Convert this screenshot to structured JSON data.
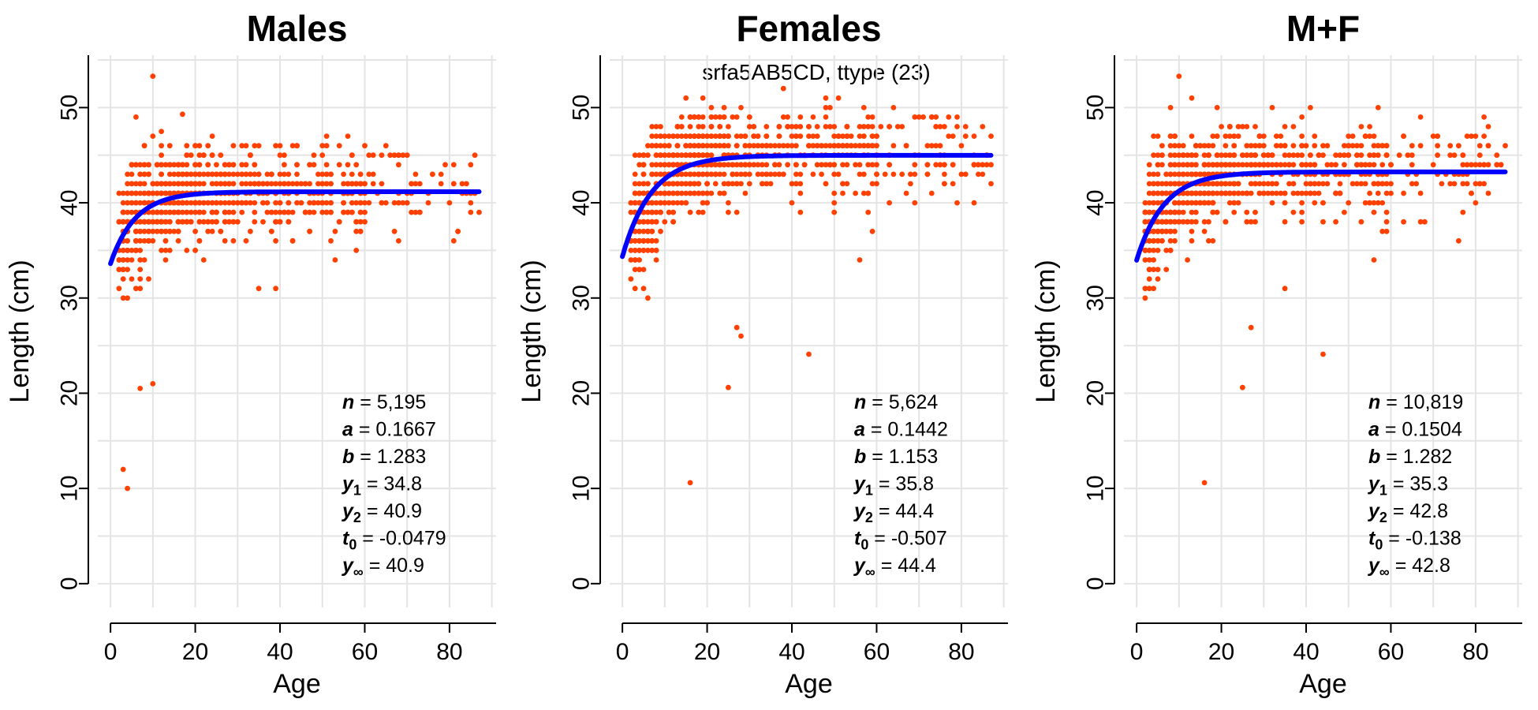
{
  "subtitle": "srfa5AB5CD, ttype (23)",
  "chart_data": [
    {
      "type": "scatter",
      "title": "Males",
      "xlabel": "Age",
      "ylabel": "Length (cm)",
      "xlim": [
        -3,
        91
      ],
      "ylim": [
        -2.5,
        55.5
      ],
      "xticks": [
        0,
        20,
        40,
        60,
        80
      ],
      "yticks": [
        0,
        10,
        20,
        30,
        40,
        50
      ],
      "grid": true,
      "point_color": "#FF4000",
      "curve_color": "#0000FF",
      "max_age": 87,
      "n_points": 5195,
      "fit": {
        "a": 0.1667,
        "b": 1.283,
        "y1": 34.8,
        "y2": 40.9,
        "t0": -0.0479,
        "yinf": 40.9
      },
      "outliers": [
        [
          10,
          53.3
        ],
        [
          17,
          49.3
        ],
        [
          12,
          47.5
        ],
        [
          35,
          31
        ],
        [
          39,
          31
        ],
        [
          4,
          10
        ],
        [
          3,
          12
        ],
        [
          7,
          20.5
        ],
        [
          10,
          21
        ]
      ],
      "annotations": [
        {
          "symbol": "n",
          "sub": "",
          "value": "5,195"
        },
        {
          "symbol": "a",
          "sub": "",
          "value": "0.1667"
        },
        {
          "symbol": "b",
          "sub": "",
          "value": "1.283"
        },
        {
          "symbol": "y",
          "sub": "1",
          "value": "34.8"
        },
        {
          "symbol": "y",
          "sub": "2",
          "value": "40.9"
        },
        {
          "symbol": "t",
          "sub": "0",
          "value": "-0.0479"
        },
        {
          "symbol": "y",
          "sub": "∞",
          "value": "40.9"
        }
      ]
    },
    {
      "type": "scatter",
      "title": "Females",
      "xlabel": "Age",
      "ylabel": "Length (cm)",
      "xlim": [
        -3,
        91
      ],
      "ylim": [
        -2.5,
        55.5
      ],
      "xticks": [
        0,
        20,
        40,
        60,
        80
      ],
      "yticks": [
        0,
        10,
        20,
        30,
        40,
        50
      ],
      "grid": true,
      "point_color": "#FF4000",
      "curve_color": "#0000FF",
      "max_age": 87,
      "n_points": 5624,
      "fit": {
        "a": 0.1442,
        "b": 1.153,
        "y1": 35.8,
        "y2": 44.4,
        "t0": -0.507,
        "yinf": 44.4
      },
      "outliers": [
        [
          16,
          10.6
        ],
        [
          25,
          20.6
        ],
        [
          44,
          24.1
        ],
        [
          56,
          34
        ],
        [
          27,
          26.9
        ],
        [
          28,
          26
        ]
      ],
      "annotations": [
        {
          "symbol": "n",
          "sub": "",
          "value": "5,624"
        },
        {
          "symbol": "a",
          "sub": "",
          "value": "0.1442"
        },
        {
          "symbol": "b",
          "sub": "",
          "value": "1.153"
        },
        {
          "symbol": "y",
          "sub": "1",
          "value": "35.8"
        },
        {
          "symbol": "y",
          "sub": "2",
          "value": "44.4"
        },
        {
          "symbol": "t",
          "sub": "0",
          "value": "-0.507"
        },
        {
          "symbol": "y",
          "sub": "∞",
          "value": "44.4"
        }
      ]
    },
    {
      "type": "scatter",
      "title": "M+F",
      "xlabel": "Age",
      "ylabel": "Length (cm)",
      "xlim": [
        -3,
        91
      ],
      "ylim": [
        -2.5,
        55.5
      ],
      "xticks": [
        0,
        20,
        40,
        60,
        80
      ],
      "yticks": [
        0,
        10,
        20,
        30,
        40,
        50
      ],
      "grid": true,
      "point_color": "#FF4000",
      "curve_color": "#0000FF",
      "max_age": 87,
      "n_points": 10819,
      "fit": {
        "a": 0.1504,
        "b": 1.282,
        "y1": 35.3,
        "y2": 42.8,
        "t0": -0.138,
        "yinf": 42.8
      },
      "outliers": [
        [
          10,
          53.3
        ],
        [
          16,
          10.6
        ],
        [
          25,
          20.6
        ],
        [
          44,
          24.1
        ],
        [
          56,
          34
        ],
        [
          27,
          26.9
        ],
        [
          35,
          31
        ]
      ],
      "annotations": [
        {
          "symbol": "n",
          "sub": "",
          "value": "10,819"
        },
        {
          "symbol": "a",
          "sub": "",
          "value": "0.1504"
        },
        {
          "symbol": "b",
          "sub": "",
          "value": "1.282"
        },
        {
          "symbol": "y",
          "sub": "1",
          "value": "35.3"
        },
        {
          "symbol": "y",
          "sub": "2",
          "value": "42.8"
        },
        {
          "symbol": "t",
          "sub": "0",
          "value": "-0.138"
        },
        {
          "symbol": "y",
          "sub": "∞",
          "value": "42.8"
        }
      ]
    }
  ]
}
